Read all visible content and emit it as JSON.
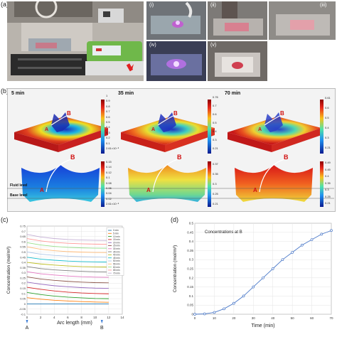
{
  "figure": {
    "panel_a": {
      "label": "(a)",
      "subpanels": [
        "(i)",
        "(ii)",
        "(iii)",
        "(iv)",
        "(v)"
      ]
    },
    "panel_b": {
      "label": "(b)",
      "times": [
        "5 min",
        "35 min",
        "70 min"
      ],
      "top_colorbars": [
        {
          "max": "1",
          "ticks": [
            "0.9",
            "0.8",
            "0.7",
            "0.6",
            "0.5",
            "0.4",
            "0.3",
            "0.2",
            "0.1"
          ],
          "min": "2.61×10⁻⁸"
        },
        {
          "max": "0.76",
          "ticks": [
            "0.7",
            "0.6",
            "0.5",
            "0.4",
            "0.3"
          ],
          "min": "0.21"
        },
        {
          "max": "0.61",
          "ticks": [
            "0.6",
            "0.5",
            "0.4",
            "0.3"
          ],
          "min": "0.21"
        }
      ],
      "bottom_colorbars": [
        {
          "max": "0.15",
          "ticks": [
            "0.14",
            "0.12",
            "0.1",
            "0.08",
            "0.06",
            "0.04",
            "0.02"
          ],
          "min": "2.61×10⁻⁸"
        },
        {
          "max": "0.37",
          "ticks": [
            "0.35",
            "0.3",
            "0.25"
          ],
          "min": "0.21"
        },
        {
          "max": "0.49",
          "ticks": [
            "0.45",
            "0.4",
            "0.35",
            "0.3",
            "0.25"
          ],
          "min": "0.21"
        }
      ],
      "point_a": "A",
      "point_b": "B",
      "fluid_level": "Fluid level",
      "base_level": "Base level"
    },
    "panel_c": {
      "label": "(c)"
    },
    "panel_d": {
      "label": "(d)"
    }
  },
  "chart_data": [
    {
      "type": "line",
      "xlabel": "Arc length (mm)",
      "ylabel": "Concentration (mol/m³)",
      "xlim": [
        0,
        14
      ],
      "ylim": [
        -0.1,
        0.75
      ],
      "xticks": [
        0,
        2,
        4,
        6,
        8,
        10,
        12,
        14
      ],
      "yticks": [
        -0.1,
        -0.05,
        0,
        0.05,
        0.1,
        0.15,
        0.2,
        0.25,
        0.3,
        0.35,
        0.4,
        0.45,
        0.5,
        0.55,
        0.6,
        0.65,
        0.7,
        0.75
      ],
      "markers": [
        "A",
        "B"
      ],
      "x": [
        0,
        2,
        4,
        6,
        8,
        10,
        12
      ],
      "legend_position": "right",
      "series": [
        {
          "name": "0 min",
          "color": "#1f77b4",
          "values": [
            0.0,
            0.0,
            0.0,
            0.0,
            0.0,
            0.0,
            0.0
          ]
        },
        {
          "name": "5 min",
          "color": "#ff7f0e",
          "values": [
            0.06,
            0.045,
            0.035,
            0.028,
            0.022,
            0.018,
            0.015
          ]
        },
        {
          "name": "10 min",
          "color": "#2ca02c",
          "values": [
            0.11,
            0.09,
            0.075,
            0.065,
            0.058,
            0.052,
            0.05
          ]
        },
        {
          "name": "15 min",
          "color": "#d62728",
          "values": [
            0.16,
            0.14,
            0.125,
            0.113,
            0.105,
            0.1,
            0.097
          ]
        },
        {
          "name": "20 min",
          "color": "#9467bd",
          "values": [
            0.21,
            0.19,
            0.175,
            0.165,
            0.157,
            0.152,
            0.15
          ]
        },
        {
          "name": "25 min",
          "color": "#8c564b",
          "values": [
            0.26,
            0.24,
            0.227,
            0.217,
            0.21,
            0.205,
            0.203
          ]
        },
        {
          "name": "30 min",
          "color": "#e377c2",
          "values": [
            0.31,
            0.29,
            0.278,
            0.269,
            0.262,
            0.258,
            0.256
          ]
        },
        {
          "name": "35 min",
          "color": "#7f7f7f",
          "values": [
            0.36,
            0.34,
            0.328,
            0.32,
            0.314,
            0.31,
            0.308
          ]
        },
        {
          "name": "40 min",
          "color": "#bcbd22",
          "values": [
            0.4,
            0.385,
            0.374,
            0.366,
            0.36,
            0.357,
            0.355
          ]
        },
        {
          "name": "45 min",
          "color": "#17becf",
          "values": [
            0.45,
            0.432,
            0.421,
            0.413,
            0.408,
            0.405,
            0.403
          ]
        },
        {
          "name": "50 min",
          "color": "#aec7e8",
          "values": [
            0.5,
            0.48,
            0.468,
            0.46,
            0.455,
            0.452,
            0.45
          ]
        },
        {
          "name": "55 min",
          "color": "#ffbb78",
          "values": [
            0.55,
            0.527,
            0.513,
            0.504,
            0.499,
            0.496,
            0.495
          ]
        },
        {
          "name": "60 min",
          "color": "#98df8a",
          "values": [
            0.59,
            0.568,
            0.554,
            0.545,
            0.54,
            0.537,
            0.536
          ]
        },
        {
          "name": "65 min",
          "color": "#ff9896",
          "values": [
            0.63,
            0.607,
            0.593,
            0.584,
            0.579,
            0.576,
            0.575
          ]
        },
        {
          "name": "70 min",
          "color": "#c5b0d5",
          "values": [
            0.67,
            0.645,
            0.63,
            0.621,
            0.616,
            0.613,
            0.612
          ]
        }
      ]
    },
    {
      "type": "line",
      "title": "Concentrations at B",
      "xlabel": "Time (min)",
      "ylabel": "Concentration (mol/m³)",
      "xlim": [
        0,
        70
      ],
      "ylim": [
        0,
        0.5
      ],
      "xticks": [
        0,
        10,
        20,
        30,
        40,
        50,
        60,
        70
      ],
      "yticks": [
        0,
        0.05,
        0.1,
        0.15,
        0.2,
        0.25,
        0.3,
        0.35,
        0.4,
        0.45,
        0.5
      ],
      "x": [
        0,
        5,
        10,
        15,
        20,
        25,
        30,
        35,
        40,
        45,
        50,
        55,
        60,
        65,
        70
      ],
      "values": [
        0.0,
        0.002,
        0.01,
        0.03,
        0.06,
        0.1,
        0.15,
        0.2,
        0.25,
        0.3,
        0.34,
        0.38,
        0.41,
        0.44,
        0.46
      ]
    }
  ]
}
